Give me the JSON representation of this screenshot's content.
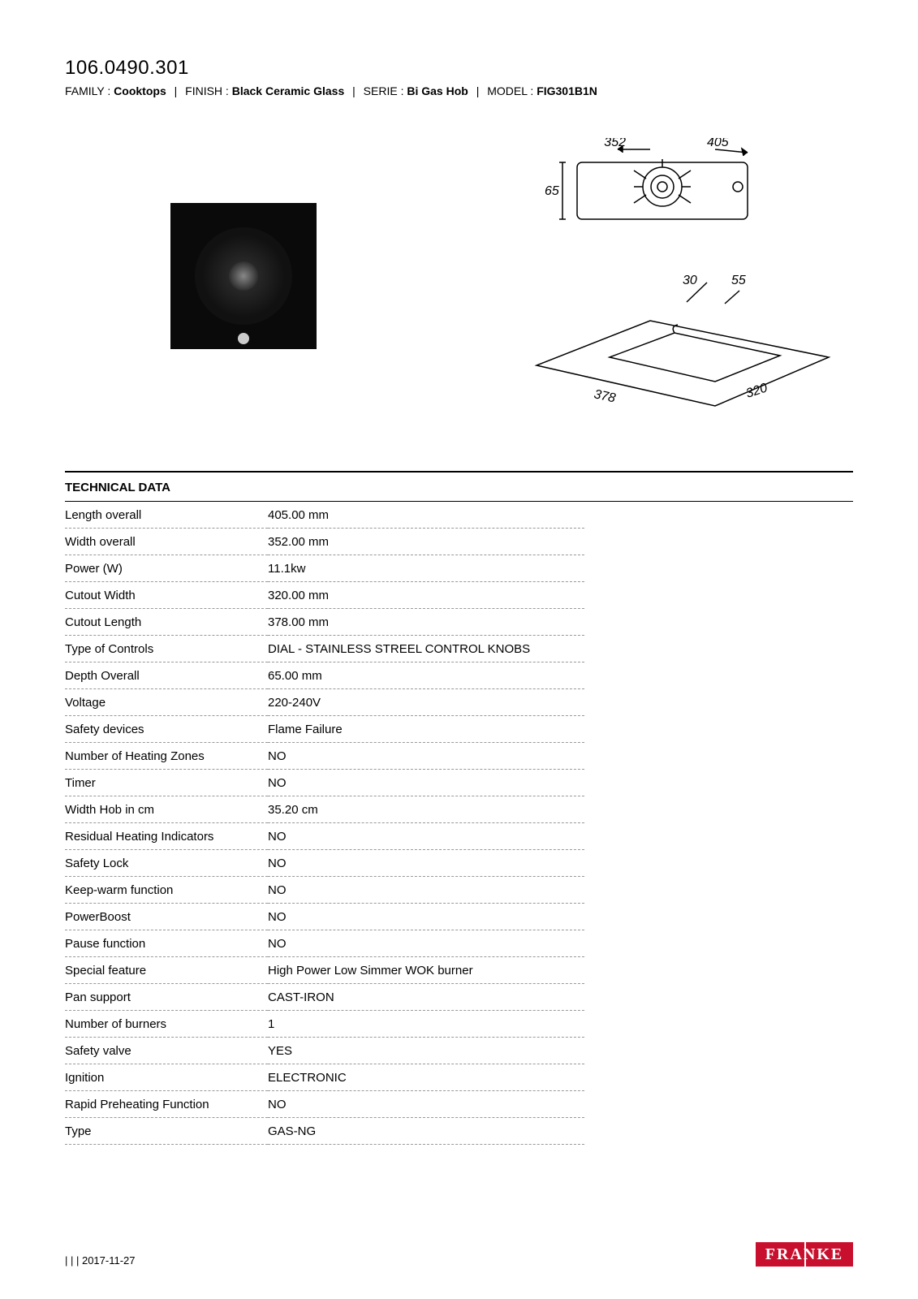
{
  "header": {
    "product_code": "106.0490.301",
    "family_label": "FAMILY :",
    "family_value": "Cooktops",
    "finish_label": "FINISH :",
    "finish_value": "Black Ceramic Glass",
    "serie_label": "SERIE :",
    "serie_value": "Bi Gas Hob",
    "model_label": "MODEL :",
    "model_value": "FIG301B1N"
  },
  "diagram": {
    "dim_top_width": "352",
    "dim_top_length": "405",
    "dim_depth": "65",
    "cutout_r": "30",
    "cutout_gap": "55",
    "cutout_length": "378",
    "cutout_width": "320",
    "stroke": "#000000",
    "label_fontsize": 16,
    "label_fontstyle": "italic"
  },
  "tech": {
    "title": "TECHNICAL DATA",
    "rows": [
      {
        "label": "Length overall",
        "value": "405.00 mm"
      },
      {
        "label": "Width overall",
        "value": "352.00 mm"
      },
      {
        "label": "Power (W)",
        "value": "11.1kw"
      },
      {
        "label": "Cutout Width",
        "value": "320.00 mm"
      },
      {
        "label": "Cutout Length",
        "value": "378.00 mm"
      },
      {
        "label": "Type of Controls",
        "value": "DIAL - STAINLESS STREEL CONTROL KNOBS"
      },
      {
        "label": "Depth Overall",
        "value": "65.00 mm"
      },
      {
        "label": "Voltage",
        "value": "220-240V"
      },
      {
        "label": "Safety devices",
        "value": "Flame Failure"
      },
      {
        "label": "Number of Heating Zones",
        "value": "NO"
      },
      {
        "label": "Timer",
        "value": "NO"
      },
      {
        "label": "Width Hob in cm",
        "value": "35.20 cm"
      },
      {
        "label": "Residual Heating Indicators",
        "value": "NO"
      },
      {
        "label": "Safety Lock",
        "value": "NO"
      },
      {
        "label": "Keep-warm function",
        "value": "NO"
      },
      {
        "label": "PowerBoost",
        "value": "NO"
      },
      {
        "label": "Pause function",
        "value": "NO"
      },
      {
        "label": "Special feature",
        "value": "High Power Low Simmer WOK burner"
      },
      {
        "label": "Pan support",
        "value": "CAST-IRON"
      },
      {
        "label": "Number of burners",
        "value": "1"
      },
      {
        "label": "Safety valve",
        "value": "YES"
      },
      {
        "label": "Ignition",
        "value": "ELECTRONIC"
      },
      {
        "label": "Rapid Preheating Function",
        "value": "NO"
      },
      {
        "label": "Type",
        "value": "GAS-NG"
      }
    ]
  },
  "footer": {
    "date": "| | | 2017-11-27",
    "logo_text": "FRANKE"
  }
}
